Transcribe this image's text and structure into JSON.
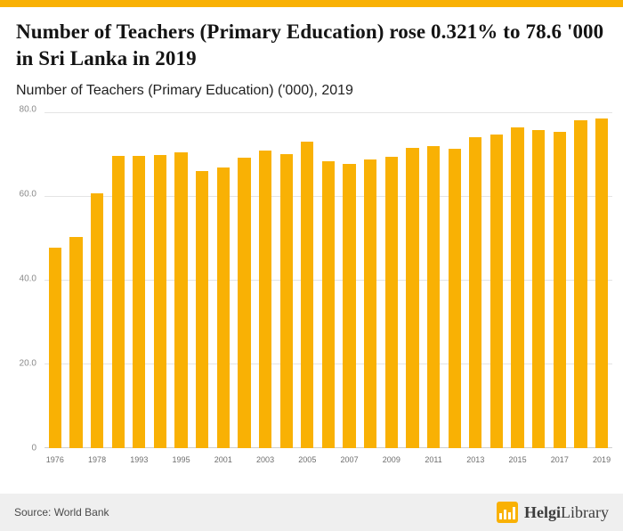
{
  "accent_color": "#F9B104",
  "header": {
    "title": "Number of Teachers (Primary Education) rose 0.321% to 78.6 '000 in Sri Lanka in 2019",
    "subtitle": "Number of Teachers (Primary Education) ('000), 2019"
  },
  "chart_data": {
    "type": "bar",
    "title": "Number of Teachers (Primary Education) ('000), 2019",
    "bar_color": "#F9B104",
    "ylim": [
      0,
      80
    ],
    "yticks": [
      0,
      20,
      40,
      60,
      80
    ],
    "ytick_labels": [
      "0",
      "20.0",
      "40.0",
      "60.0",
      "80.0"
    ],
    "grid": true,
    "legend_position": "none",
    "xlabel": "",
    "ylabel": "",
    "points": [
      {
        "x": "1976",
        "y": 47.8,
        "tick": "1976"
      },
      {
        "x": "1977",
        "y": 50.3,
        "tick": ""
      },
      {
        "x": "1978",
        "y": 60.9,
        "tick": "1978"
      },
      {
        "x": "1990",
        "y": 69.8,
        "tick": ""
      },
      {
        "x": "1993",
        "y": 69.8,
        "tick": "1993"
      },
      {
        "x": "1994",
        "y": 70.0,
        "tick": ""
      },
      {
        "x": "1995",
        "y": 70.5,
        "tick": "1995"
      },
      {
        "x": "2000",
        "y": 66.2,
        "tick": ""
      },
      {
        "x": "2001",
        "y": 66.9,
        "tick": "2001"
      },
      {
        "x": "2002",
        "y": 69.3,
        "tick": ""
      },
      {
        "x": "2003",
        "y": 71.1,
        "tick": "2003"
      },
      {
        "x": "2004",
        "y": 70.1,
        "tick": ""
      },
      {
        "x": "2005",
        "y": 73.2,
        "tick": "2005"
      },
      {
        "x": "2006",
        "y": 68.5,
        "tick": ""
      },
      {
        "x": "2007",
        "y": 67.8,
        "tick": "2007"
      },
      {
        "x": "2008",
        "y": 68.9,
        "tick": ""
      },
      {
        "x": "2009",
        "y": 69.6,
        "tick": "2009"
      },
      {
        "x": "2010",
        "y": 71.7,
        "tick": ""
      },
      {
        "x": "2011",
        "y": 72.0,
        "tick": "2011"
      },
      {
        "x": "2012",
        "y": 71.5,
        "tick": ""
      },
      {
        "x": "2013",
        "y": 74.1,
        "tick": "2013"
      },
      {
        "x": "2014",
        "y": 74.9,
        "tick": ""
      },
      {
        "x": "2015",
        "y": 76.6,
        "tick": "2015"
      },
      {
        "x": "2016",
        "y": 75.8,
        "tick": ""
      },
      {
        "x": "2017",
        "y": 75.5,
        "tick": "2017"
      },
      {
        "x": "2018",
        "y": 78.3,
        "tick": ""
      },
      {
        "x": "2019",
        "y": 78.6,
        "tick": "2019"
      }
    ]
  },
  "footer": {
    "source": "Source: World Bank",
    "brand_bold": "Helgi",
    "brand_rest": "Library"
  }
}
